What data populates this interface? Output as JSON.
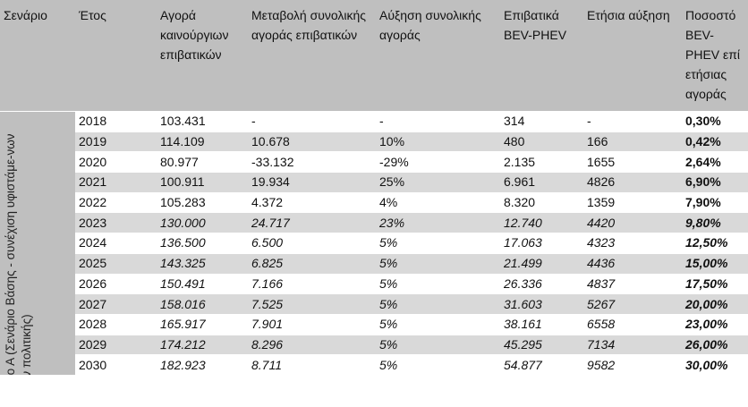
{
  "headers": {
    "scenario": "Σενάριο",
    "year": "Έτος",
    "new_cars": "Αγορά καινούργιων επιβατικών",
    "market_change": "Μεταβολή συνολικής αγοράς επιβατικών",
    "market_growth": "Αύξηση συνολικής αγοράς",
    "bev_phev": "Επιβατικά BEV-PHEV",
    "annual_increase": "Ετήσια αύξηση",
    "share": "Ποσοστό BEV-PHEV επί ετήσιας αγοράς"
  },
  "scenario_label": "Σενάριο Α (Σενάριο Βάσης - συνέχιση υφιστάμε-νων μέτρων πολιτικής)",
  "rows": [
    {
      "year": "2018",
      "new_cars": "103.431",
      "market_change": "-",
      "market_growth": "-",
      "bev_phev": "314",
      "annual_increase": "-",
      "share": "0,30%",
      "italic": false
    },
    {
      "year": "2019",
      "new_cars": "114.109",
      "market_change": "10.678",
      "market_growth": "10%",
      "bev_phev": "480",
      "annual_increase": "166",
      "share": "0,42%",
      "italic": false
    },
    {
      "year": "2020",
      "new_cars": "80.977",
      "market_change": "-33.132",
      "market_growth": "-29%",
      "bev_phev": "2.135",
      "annual_increase": "1655",
      "share": "2,64%",
      "italic": false
    },
    {
      "year": "2021",
      "new_cars": "100.911",
      "market_change": "19.934",
      "market_growth": "25%",
      "bev_phev": "6.961",
      "annual_increase": "4826",
      "share": "6,90%",
      "italic": false
    },
    {
      "year": "2022",
      "new_cars": "105.283",
      "market_change": "4.372",
      "market_growth": "4%",
      "bev_phev": "8.320",
      "annual_increase": "1359",
      "share": "7,90%",
      "italic": false
    },
    {
      "year": "2023",
      "new_cars": "130.000",
      "market_change": "24.717",
      "market_growth": "23%",
      "bev_phev": "12.740",
      "annual_increase": "4420",
      "share": "9,80%",
      "italic": true
    },
    {
      "year": "2024",
      "new_cars": "136.500",
      "market_change": "6.500",
      "market_growth": "5%",
      "bev_phev": "17.063",
      "annual_increase": "4323",
      "share": "12,50%",
      "italic": true
    },
    {
      "year": "2025",
      "new_cars": "143.325",
      "market_change": "6.825",
      "market_growth": "5%",
      "bev_phev": "21.499",
      "annual_increase": "4436",
      "share": "15,00%",
      "italic": true
    },
    {
      "year": "2026",
      "new_cars": "150.491",
      "market_change": "7.166",
      "market_growth": "5%",
      "bev_phev": "26.336",
      "annual_increase": "4837",
      "share": "17,50%",
      "italic": true
    },
    {
      "year": "2027",
      "new_cars": "158.016",
      "market_change": "7.525",
      "market_growth": "5%",
      "bev_phev": "31.603",
      "annual_increase": "5267",
      "share": "20,00%",
      "italic": true
    },
    {
      "year": "2028",
      "new_cars": "165.917",
      "market_change": "7.901",
      "market_growth": "5%",
      "bev_phev": "38.161",
      "annual_increase": "6558",
      "share": "23,00%",
      "italic": true
    },
    {
      "year": "2029",
      "new_cars": "174.212",
      "market_change": "8.296",
      "market_growth": "5%",
      "bev_phev": "45.295",
      "annual_increase": "7134",
      "share": "26,00%",
      "italic": true
    },
    {
      "year": "2030",
      "new_cars": "182.923",
      "market_change": "8.711",
      "market_growth": "5%",
      "bev_phev": "54.877",
      "annual_increase": "9582",
      "share": "30,00%",
      "italic": true
    }
  ]
}
